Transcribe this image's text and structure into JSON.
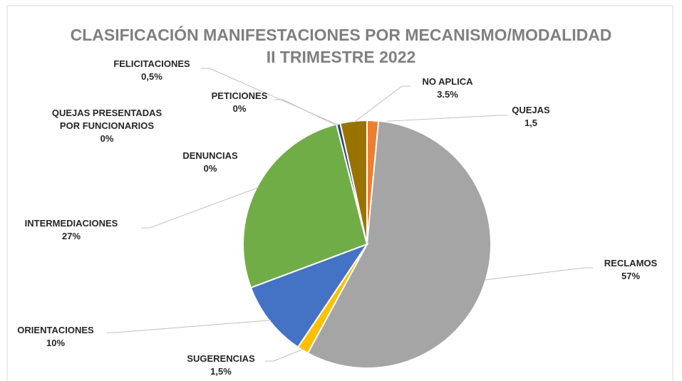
{
  "chart_data": {
    "type": "pie",
    "title": [
      "CLASIFICACIÓN MANIFESTACIONES POR MECANISMO/MODALIDAD",
      "II TRIMESTRE  2022"
    ],
    "categories": [
      "QUEJAS",
      "RECLAMOS",
      "SUGERENCIAS",
      "ORIENTACIONES",
      "INTERMEDIACIONES",
      "DENUNCIAS",
      "QUEJAS PRESENTADAS POR FUNCIONARIOS",
      "PETICIONES",
      "FELICITACIONES",
      "NO APLICA"
    ],
    "values": [
      1.5,
      57,
      1.5,
      10,
      27,
      0,
      0,
      0,
      0.5,
      3.5
    ],
    "value_labels": [
      "1,5",
      "57%",
      "1,5%",
      "10%",
      "27%",
      "0%",
      "0%",
      "0%",
      "0,5%",
      "3.5%"
    ],
    "colors": [
      "#ed7d31",
      "#a5a5a5",
      "#ffc000",
      "#4472c4",
      "#70ad47",
      "#255e91",
      "#9e480e",
      "#636363",
      "#264478",
      "#997300"
    ]
  }
}
